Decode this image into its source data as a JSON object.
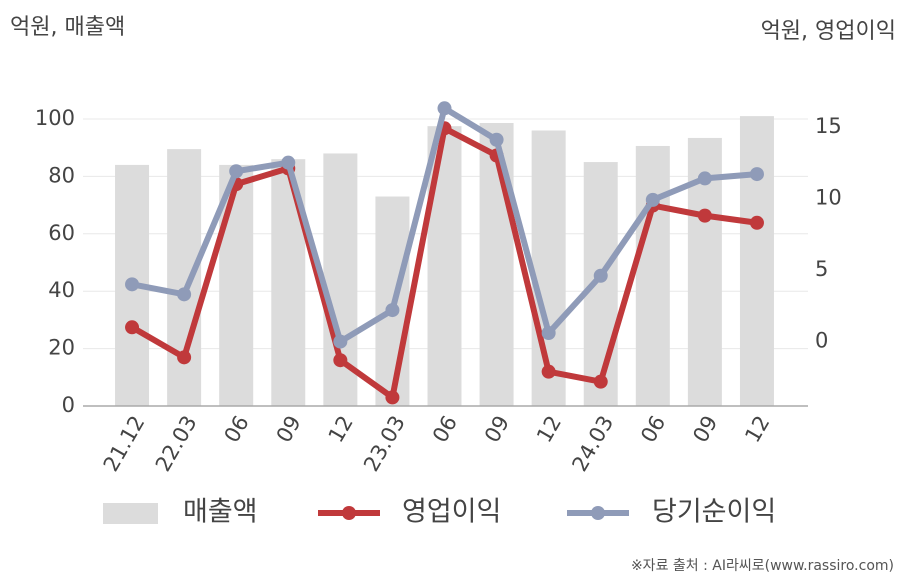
{
  "chart_data": {
    "type": "bar",
    "left_axis_title": "억원, 매출액",
    "right_axis_title": "억원, 영업이익",
    "source": "※자료 출처 : AI라씨로(www.rassiro.com)",
    "categories": [
      "21.12",
      "22.03",
      "06",
      "09",
      "12",
      "23.03",
      "06",
      "09",
      "12",
      "24.03",
      "06",
      "09",
      "12"
    ],
    "series": [
      {
        "name": "매출액",
        "type": "bar",
        "color": "#dcdcdc",
        "values": [
          84,
          89.5,
          84,
          86,
          88,
          73,
          97.5,
          98.6,
          96,
          85,
          90.6,
          93.4,
          101
        ]
      },
      {
        "name": "영업이익",
        "type": "line",
        "axis": "y2",
        "color": "#c0393b",
        "values": [
          1.0,
          -1.1,
          11.0,
          12.1,
          -1.3,
          -3.9,
          14.9,
          13.0,
          -2.1,
          -2.8,
          9.5,
          8.8,
          8.3
        ]
      },
      {
        "name": "당기순이익",
        "type": "line",
        "axis": "y2",
        "color": "#8f9bb8",
        "values": [
          4.0,
          3.3,
          11.9,
          12.5,
          0,
          2.2,
          16.3,
          14.1,
          0.6,
          4.6,
          9.9,
          11.4,
          11.7
        ]
      }
    ],
    "ylim": [
      0,
      100
    ],
    "yticks": [
      0,
      20,
      40,
      60,
      80,
      100
    ],
    "y2lim": [
      -4.5,
      15.55
    ],
    "y2ticks": [
      0,
      5,
      10,
      15
    ],
    "grid": true,
    "legend": "bottom"
  }
}
